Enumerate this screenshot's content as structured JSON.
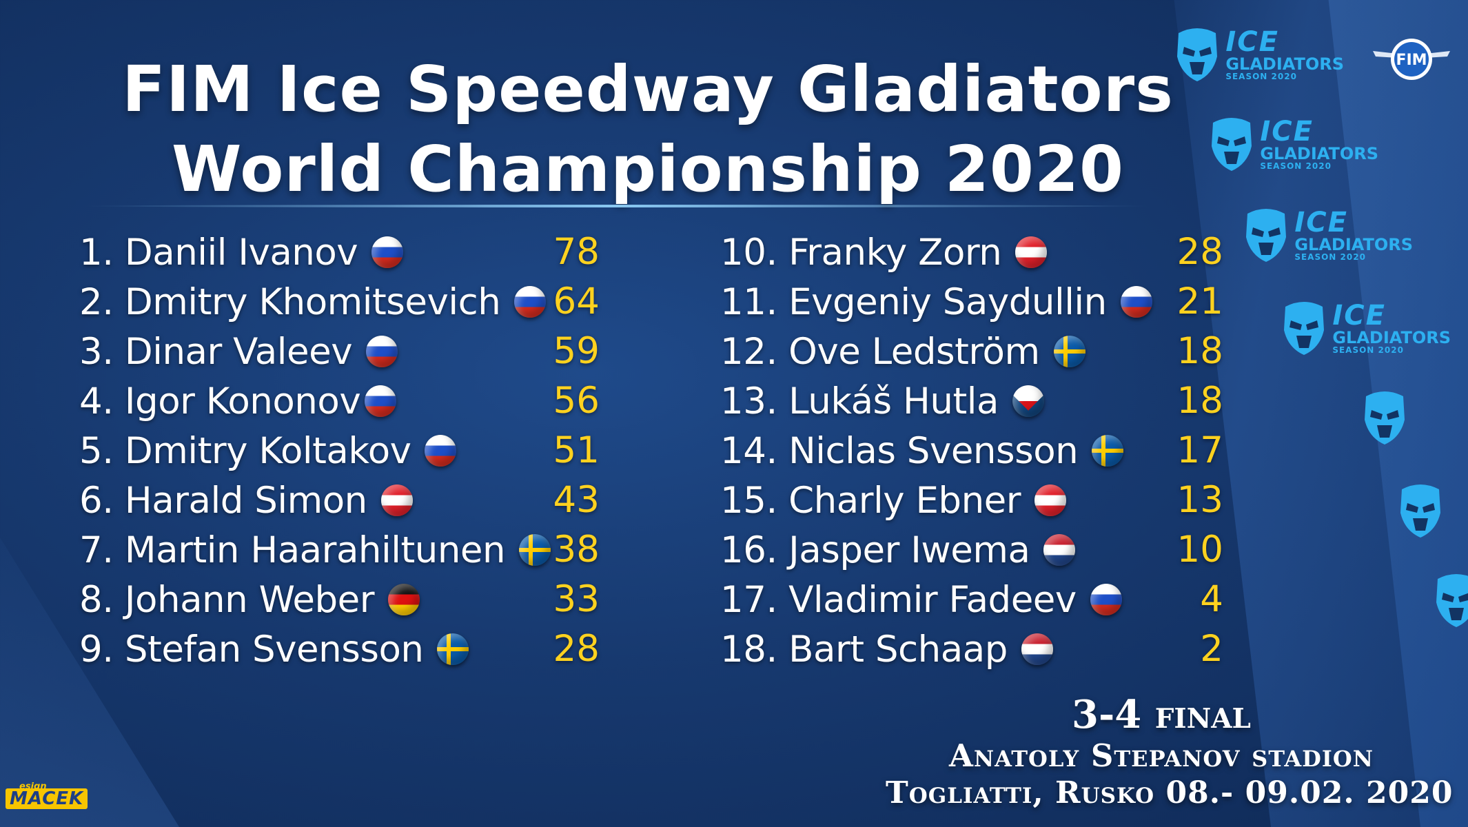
{
  "header": {
    "title_line1": "FIM Ice Speedway Gladiators",
    "title_line2": "World Championship 2020"
  },
  "standings_left": [
    {
      "rank_name": "1. Daniil Ivanov",
      "flag": "russia-flag",
      "points": "78"
    },
    {
      "rank_name": "2. Dmitry Khomitsevich",
      "flag": "russia-flag",
      "points": "64"
    },
    {
      "rank_name": "3. Dinar Valeev",
      "flag": "russia-flag",
      "points": "59"
    },
    {
      "rank_name": "4. Igor Kononov",
      "flag": "russia-flag",
      "points": "56"
    },
    {
      "rank_name": "5. Dmitry Koltakov",
      "flag": "russia-flag",
      "points": "51"
    },
    {
      "rank_name": "6. Harald Simon",
      "flag": "austria-flag",
      "points": "43"
    },
    {
      "rank_name": "7. Martin Haarahiltunen",
      "flag": "sweden-flag",
      "points": "38"
    },
    {
      "rank_name": "8. Johann Weber",
      "flag": "germany-flag",
      "points": "33"
    },
    {
      "rank_name": "9. Stefan Svensson",
      "flag": "sweden-flag",
      "points": "28"
    }
  ],
  "standings_right": [
    {
      "rank_name": "10. Franky Zorn",
      "flag": "austria-flag",
      "points": "28"
    },
    {
      "rank_name": "11. Evgeniy Saydullin",
      "flag": "russia-flag",
      "points": "21"
    },
    {
      "rank_name": "12. Ove Ledström",
      "flag": "sweden-flag",
      "points": "18"
    },
    {
      "rank_name": "13. Lukáš Hutla",
      "flag": "czech-flag",
      "points": "18"
    },
    {
      "rank_name": "14. Niclas Svensson",
      "flag": "sweden-flag",
      "points": "17"
    },
    {
      "rank_name": "15. Charly Ebner",
      "flag": "austria-flag",
      "points": "13"
    },
    {
      "rank_name": "16. Jasper Iwema",
      "flag": "netherlands-flag",
      "points": "10"
    },
    {
      "rank_name": "17. Vladimir Fadeev",
      "flag": "russia-flag",
      "points": "4"
    },
    {
      "rank_name": "18. Bart Schaap",
      "flag": "netherlands-flag",
      "points": "2"
    }
  ],
  "event": {
    "round": "3-4 final",
    "venue": "Anatoly Stepanov stadion",
    "place_dates": "Togliatti, Rusko  08.- 09.02. 2020"
  },
  "logos": {
    "brand_word_1": "ICE",
    "brand_word_2": "GLADIATORS",
    "brand_season": "SEASON 2020",
    "fim_badge": "FIM"
  },
  "watermark": {
    "sub": "esign",
    "main": "MACEK"
  },
  "colors": {
    "background": "#17396f",
    "points": "#ffd21f",
    "logo_blue": "#2db0f0"
  }
}
